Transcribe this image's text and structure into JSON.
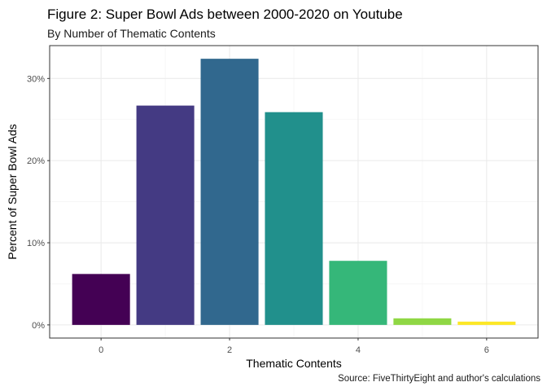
{
  "chart_data": {
    "type": "bar",
    "title": "Figure 2: Super Bowl Ads between 2000-2020 on Youtube",
    "subtitle": "By Number of Thematic Contents",
    "caption": "Source: FiveThirtyEight and author's calculations",
    "xlabel": "Thematic Contents",
    "ylabel": "Percent of Super Bowl Ads",
    "categories": [
      0,
      1,
      2,
      3,
      4,
      5,
      6
    ],
    "values": [
      6.2,
      26.7,
      32.4,
      25.9,
      7.8,
      0.8,
      0.4
    ],
    "colors": [
      "#440154",
      "#443A83",
      "#31688E",
      "#21908C",
      "#35B779",
      "#8FD744",
      "#FDE725"
    ],
    "xlim": [
      -0.8,
      6.8
    ],
    "ylim": [
      -1.6,
      34.0
    ],
    "xticks": [
      0,
      2,
      4,
      6
    ],
    "xtick_labels": [
      "0",
      "2",
      "4",
      "6"
    ],
    "yticks": [
      0,
      10,
      20,
      30
    ],
    "ytick_labels": [
      "0%",
      "10%",
      "20%",
      "30%"
    ],
    "grid": true,
    "legend": "none"
  }
}
